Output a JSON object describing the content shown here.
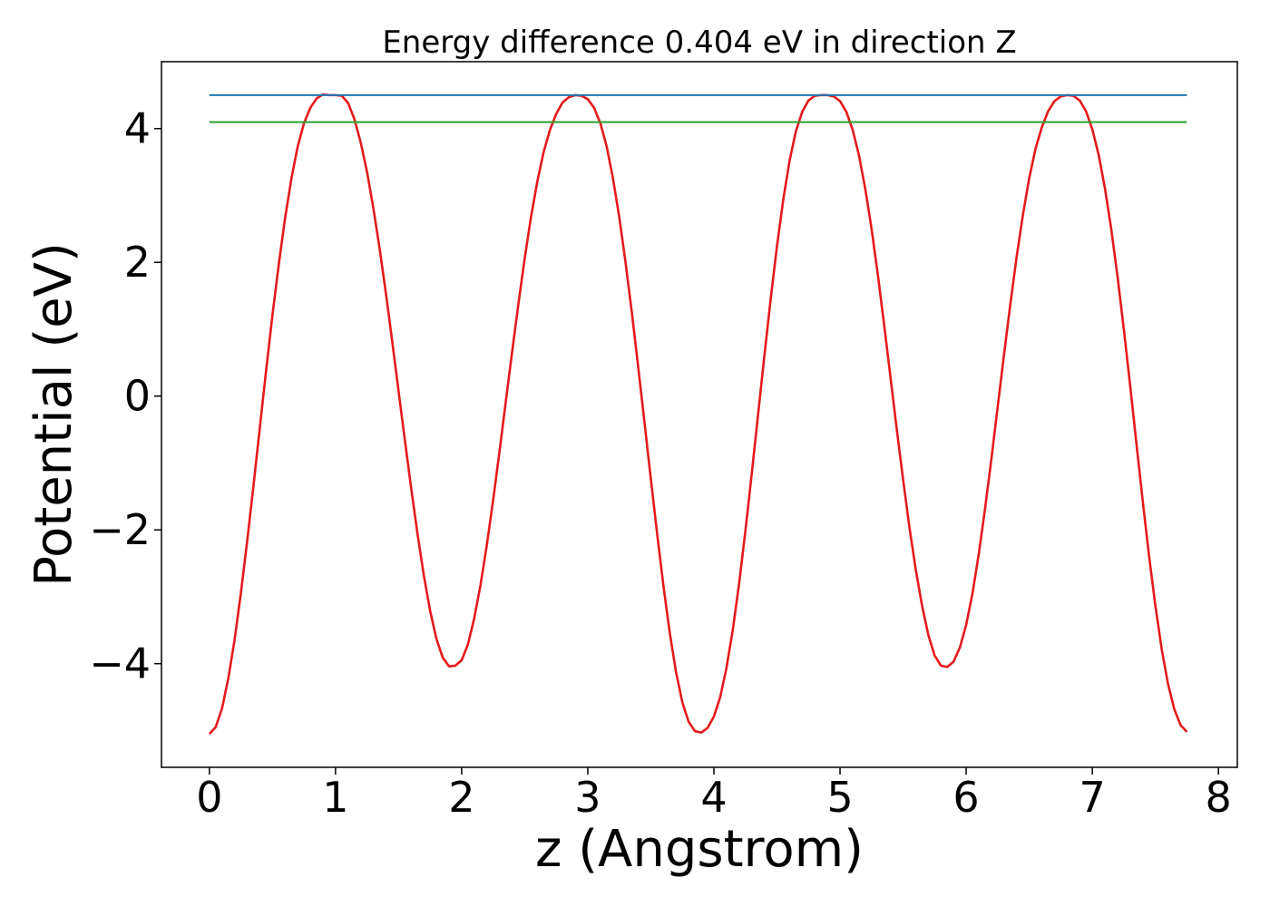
{
  "chart_data": {
    "type": "line",
    "title": "Energy difference 0.404 eV in direction Z",
    "xlabel": "z (Angstrom)",
    "ylabel": "Potential (eV)",
    "xlim": [
      -0.38,
      8.15
    ],
    "ylim": [
      -5.55,
      5.0
    ],
    "xticks": [
      0,
      1,
      2,
      3,
      4,
      5,
      6,
      7,
      8
    ],
    "xtick_labels": [
      "0",
      "1",
      "2",
      "3",
      "4",
      "5",
      "6",
      "7",
      "8"
    ],
    "yticks": [
      -4,
      -2,
      0,
      2,
      4
    ],
    "ytick_labels": [
      "−4",
      "−2",
      "0",
      "2",
      "4"
    ],
    "grid": false,
    "series": [
      {
        "color": "#e41a1c",
        "x": [
          0.0,
          0.05,
          0.1,
          0.15,
          0.2,
          0.25,
          0.3,
          0.35,
          0.4,
          0.45,
          0.5,
          0.55,
          0.6,
          0.65,
          0.7,
          0.75,
          0.8,
          0.85,
          0.9,
          0.95,
          1.0,
          1.05,
          1.1,
          1.15,
          1.2,
          1.25,
          1.3,
          1.35,
          1.4,
          1.45,
          1.5,
          1.55,
          1.6,
          1.65,
          1.7,
          1.75,
          1.8,
          1.85,
          1.9,
          1.95,
          2.0,
          2.05,
          2.1,
          2.15,
          2.2,
          2.25,
          2.3,
          2.35,
          2.4,
          2.45,
          2.5,
          2.55,
          2.6,
          2.65,
          2.7,
          2.75,
          2.8,
          2.85,
          2.9,
          2.95,
          3.0,
          3.05,
          3.1,
          3.15,
          3.2,
          3.25,
          3.3,
          3.35,
          3.4,
          3.45,
          3.5,
          3.55,
          3.6,
          3.65,
          3.7,
          3.75,
          3.8,
          3.85,
          3.9,
          3.95,
          4.0,
          4.05,
          4.1,
          4.15,
          4.2,
          4.25,
          4.3,
          4.35,
          4.4,
          4.45,
          4.5,
          4.55,
          4.6,
          4.65,
          4.7,
          4.75,
          4.8,
          4.85,
          4.9,
          4.95,
          5.0,
          5.05,
          5.1,
          5.15,
          5.2,
          5.25,
          5.3,
          5.35,
          5.4,
          5.45,
          5.5,
          5.55,
          5.6,
          5.65,
          5.7,
          5.75,
          5.8,
          5.85,
          5.9,
          5.95,
          6.0,
          6.05,
          6.1,
          6.15,
          6.2,
          6.25,
          6.3,
          6.35,
          6.4,
          6.45,
          6.5,
          6.55,
          6.6,
          6.65,
          6.7,
          6.75,
          6.8,
          6.85,
          6.9,
          6.95,
          7.0,
          7.05,
          7.1,
          7.15,
          7.2,
          7.25,
          7.3,
          7.35,
          7.4,
          7.45,
          7.5,
          7.55,
          7.6,
          7.65,
          7.7,
          7.75
        ],
        "y": [
          -5.05,
          -4.95,
          -4.67,
          -4.22,
          -3.64,
          -2.94,
          -2.16,
          -1.33,
          -0.47,
          0.39,
          1.21,
          1.97,
          2.66,
          3.25,
          3.73,
          4.08,
          4.31,
          4.45,
          4.51,
          4.5,
          4.5,
          4.49,
          4.38,
          4.14,
          3.79,
          3.35,
          2.81,
          2.2,
          1.53,
          0.81,
          0.07,
          -0.66,
          -1.38,
          -2.06,
          -2.68,
          -3.21,
          -3.63,
          -3.91,
          -4.04,
          -4.03,
          -3.95,
          -3.71,
          -3.32,
          -2.82,
          -2.22,
          -1.55,
          -0.83,
          -0.08,
          0.66,
          1.38,
          2.06,
          2.68,
          3.21,
          3.65,
          3.98,
          4.22,
          4.39,
          4.47,
          4.5,
          4.49,
          4.44,
          4.31,
          4.08,
          3.73,
          3.25,
          2.67,
          1.99,
          1.24,
          0.43,
          -0.4,
          -1.24,
          -2.06,
          -2.84,
          -3.54,
          -4.13,
          -4.58,
          -4.87,
          -5.01,
          -5.03,
          -4.96,
          -4.79,
          -4.5,
          -4.06,
          -3.49,
          -2.8,
          -2.01,
          -1.16,
          -0.28,
          0.6,
          1.45,
          2.24,
          2.94,
          3.52,
          3.96,
          4.25,
          4.42,
          4.49,
          4.5,
          4.5,
          4.48,
          4.41,
          4.25,
          3.98,
          3.6,
          3.1,
          2.5,
          1.81,
          1.06,
          0.28,
          -0.5,
          -1.25,
          -1.96,
          -2.59,
          -3.13,
          -3.57,
          -3.88,
          -4.03,
          -4.05,
          -3.97,
          -3.76,
          -3.42,
          -2.95,
          -2.36,
          -1.68,
          -0.94,
          -0.16,
          0.62,
          1.37,
          2.08,
          2.71,
          3.26,
          3.7,
          4.02,
          4.26,
          4.41,
          4.48,
          4.5,
          4.49,
          4.42,
          4.26,
          3.99,
          3.61,
          3.11,
          2.5,
          1.79,
          1.0,
          0.16,
          -0.71,
          -1.57,
          -2.39,
          -3.13,
          -3.78,
          -4.3,
          -4.68,
          -4.92,
          -5.02
        ]
      },
      {
        "color": "#1f77b4",
        "x": [
          0.0,
          7.75
        ],
        "y": [
          4.5,
          4.5
        ]
      },
      {
        "color": "#2ca02c",
        "x": [
          0.0,
          7.75
        ],
        "y": [
          4.096,
          4.096
        ]
      }
    ]
  }
}
